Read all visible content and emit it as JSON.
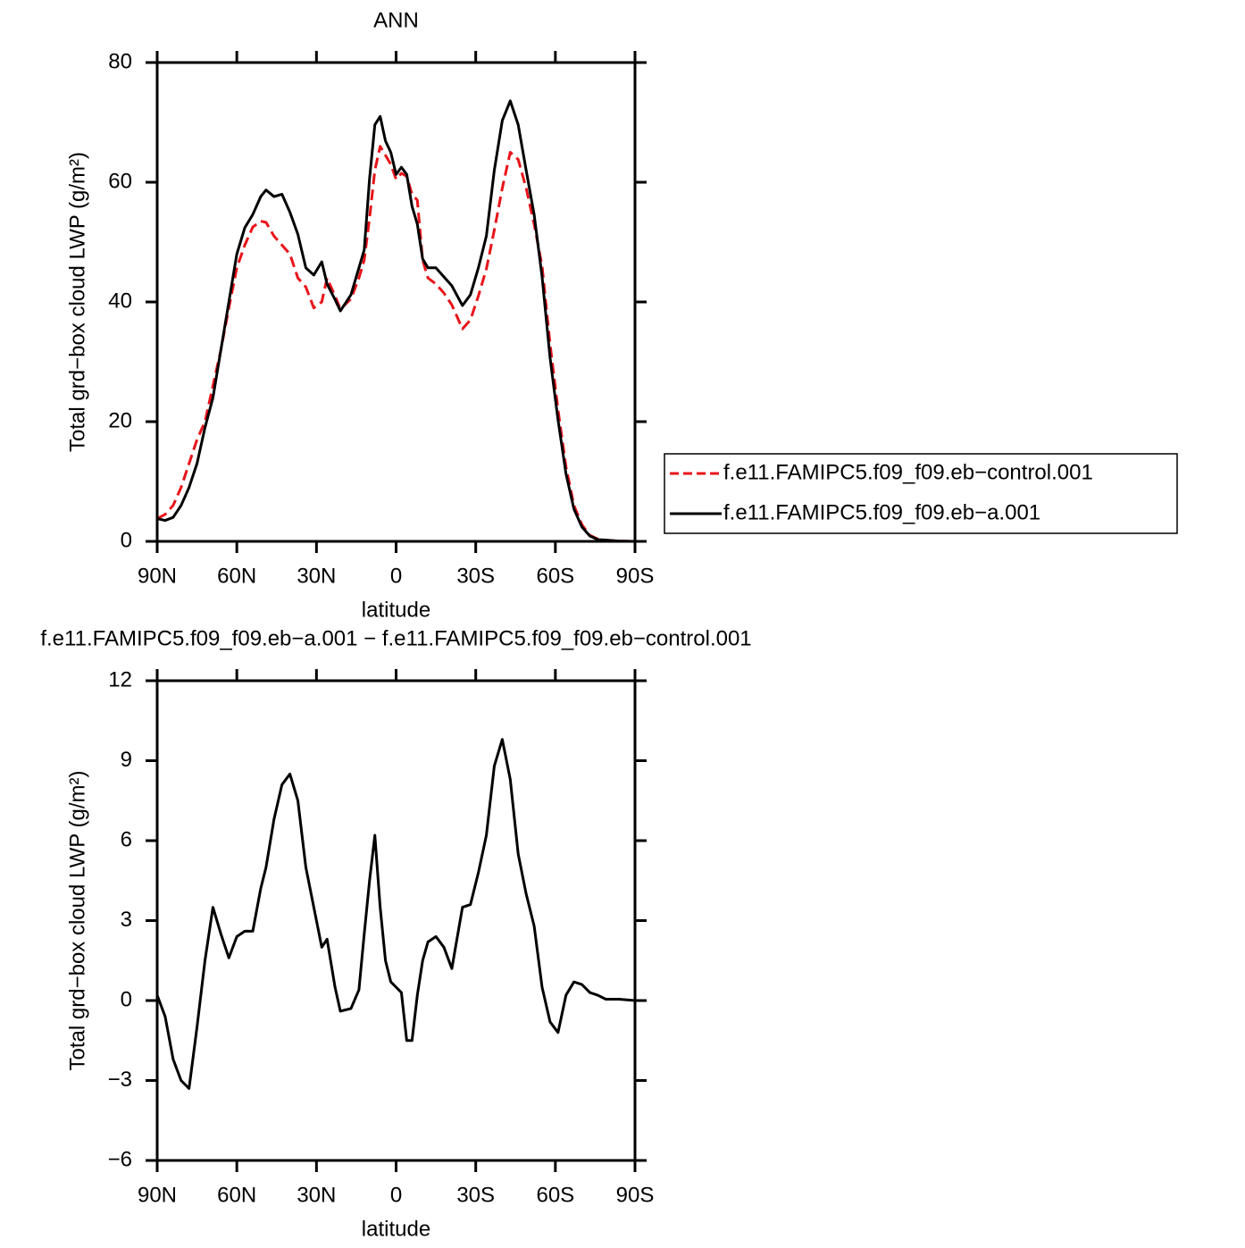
{
  "chart_data": [
    {
      "type": "line",
      "title": "ANN",
      "xlabel": "latitude",
      "ylabel": "Total grd−box cloud LWP (g/m²)",
      "x": [
        90,
        87,
        84,
        81,
        78,
        75,
        72,
        69,
        66,
        63,
        60,
        57,
        54,
        51,
        49,
        46,
        43,
        40,
        37,
        34,
        31,
        28,
        26,
        23,
        21,
        17,
        14,
        12,
        10,
        8,
        6,
        4,
        2,
        0,
        -2,
        -4,
        -6,
        -8,
        -10,
        -12,
        -15,
        -18,
        -21,
        -25,
        -28,
        -31,
        -34,
        -37,
        -40,
        -43,
        -46,
        -49,
        -52,
        -55,
        -58,
        -61,
        -64,
        -67,
        -70,
        -73,
        -76,
        -79,
        -84,
        -90
      ],
      "series": [
        {
          "name": "f.e11.FAMIPC5.f09_f09.eb−control.001",
          "color": "#e8141a",
          "linestyle": "dashed",
          "values": [
            3.8,
            4.5,
            6,
            9,
            13,
            17,
            20,
            26,
            32,
            39,
            45.7,
            49.5,
            52.5,
            53.5,
            53.3,
            51,
            49.5,
            48,
            44,
            42.5,
            39,
            40,
            44,
            41,
            38.8,
            40.5,
            44,
            47,
            54,
            62,
            66,
            64.5,
            63,
            60.5,
            61.5,
            61,
            58,
            57,
            47,
            44,
            43,
            41.5,
            39.5,
            35.5,
            37,
            41,
            45.5,
            52,
            59,
            65,
            63.8,
            59,
            53,
            46,
            33,
            22,
            12.5,
            6,
            2.8,
            1,
            0.4,
            0.2,
            0.05,
            0
          ]
        },
        {
          "name": "f.e11.FAMIPC5.f09_f09.eb−a.001",
          "color": "#000000",
          "linestyle": "solid",
          "values": [
            3.8,
            3.5,
            4,
            6,
            9,
            13,
            19,
            24,
            32,
            40,
            48,
            52.4,
            54.6,
            57.6,
            58.7,
            57.6,
            58,
            55,
            51.3,
            45.7,
            44.5,
            46.7,
            43,
            40.4,
            38.5,
            41.2,
            45.7,
            48.7,
            60.6,
            69.6,
            71,
            66.9,
            65,
            61.3,
            62.5,
            61.3,
            56,
            53,
            47.2,
            45.7,
            45.7,
            44.2,
            42.7,
            39.4,
            41.2,
            45.7,
            51,
            62,
            70.3,
            73.6,
            69.6,
            62,
            54.6,
            44.2,
            30.7,
            20.3,
            11.3,
            5.4,
            2.4,
            0.9,
            0.3,
            0.2,
            0.05,
            0
          ]
        }
      ],
      "xlim": [
        90,
        -90
      ],
      "xticks": [
        {
          "value": 90,
          "label": "90N"
        },
        {
          "value": 60,
          "label": "60N"
        },
        {
          "value": 30,
          "label": "30N"
        },
        0,
        {
          "value": -30,
          "label": "30S"
        },
        {
          "value": -60,
          "label": "60S"
        },
        {
          "value": -90,
          "label": "90S"
        }
      ],
      "ylim": [
        0,
        80
      ],
      "yticks": [
        0,
        20,
        40,
        60,
        80
      ],
      "legend": "outside-right"
    },
    {
      "type": "line",
      "title": "f.e11.FAMIPC5.f09_f09.eb−a.001  −  f.e11.FAMIPC5.f09_f09.eb−control.001",
      "xlabel": "latitude",
      "ylabel": "Total grd−box cloud LWP (g/m²)",
      "x": [
        90,
        87,
        84,
        81,
        78,
        75,
        72,
        69,
        66,
        63,
        60,
        57,
        54,
        51,
        49,
        46,
        43,
        40,
        37,
        34,
        31,
        28,
        26,
        23,
        21,
        17,
        14,
        12,
        10,
        8,
        6,
        4,
        2,
        0,
        -2,
        -4,
        -6,
        -8,
        -10,
        -12,
        -15,
        -18,
        -21,
        -25,
        -28,
        -31,
        -34,
        -37,
        -40,
        -43,
        -46,
        -49,
        -52,
        -55,
        -58,
        -61,
        -64,
        -67,
        -70,
        -73,
        -76,
        -79,
        -84,
        -90
      ],
      "series": [
        {
          "color": "#000000",
          "linestyle": "solid",
          "values": [
            0.2,
            -0.6,
            -2.2,
            -3,
            -3.3,
            -1,
            1.5,
            3.5,
            2.5,
            1.6,
            2.4,
            2.6,
            2.6,
            4.2,
            5,
            6.8,
            8.1,
            8.5,
            7.5,
            5,
            3.5,
            2,
            2.3,
            0.5,
            -0.4,
            -0.3,
            0.4,
            2.5,
            4.5,
            6.2,
            3.5,
            1.5,
            0.7,
            0.5,
            0.3,
            -1.5,
            -1.5,
            0.2,
            1.5,
            2.2,
            2.4,
            2,
            1.2,
            3.5,
            3.6,
            4.8,
            6.2,
            8.8,
            9.8,
            8.3,
            5.5,
            4,
            2.8,
            0.5,
            -0.8,
            -1.2,
            0.2,
            0.7,
            0.6,
            0.3,
            0.2,
            0.05,
            0.05,
            0
          ]
        }
      ],
      "xlim": [
        90,
        -90
      ],
      "xticks": [
        {
          "value": 90,
          "label": "90N"
        },
        {
          "value": 60,
          "label": "60N"
        },
        {
          "value": 30,
          "label": "30N"
        },
        0,
        {
          "value": -30,
          "label": "30S"
        },
        {
          "value": -60,
          "label": "60S"
        },
        {
          "value": -90,
          "label": "90S"
        }
      ],
      "ylim": [
        -6,
        12
      ],
      "yticks": [
        {
          "value": -6,
          "label": "−6"
        },
        {
          "value": -3,
          "label": "−3"
        },
        0,
        3,
        6,
        9,
        12
      ]
    }
  ]
}
